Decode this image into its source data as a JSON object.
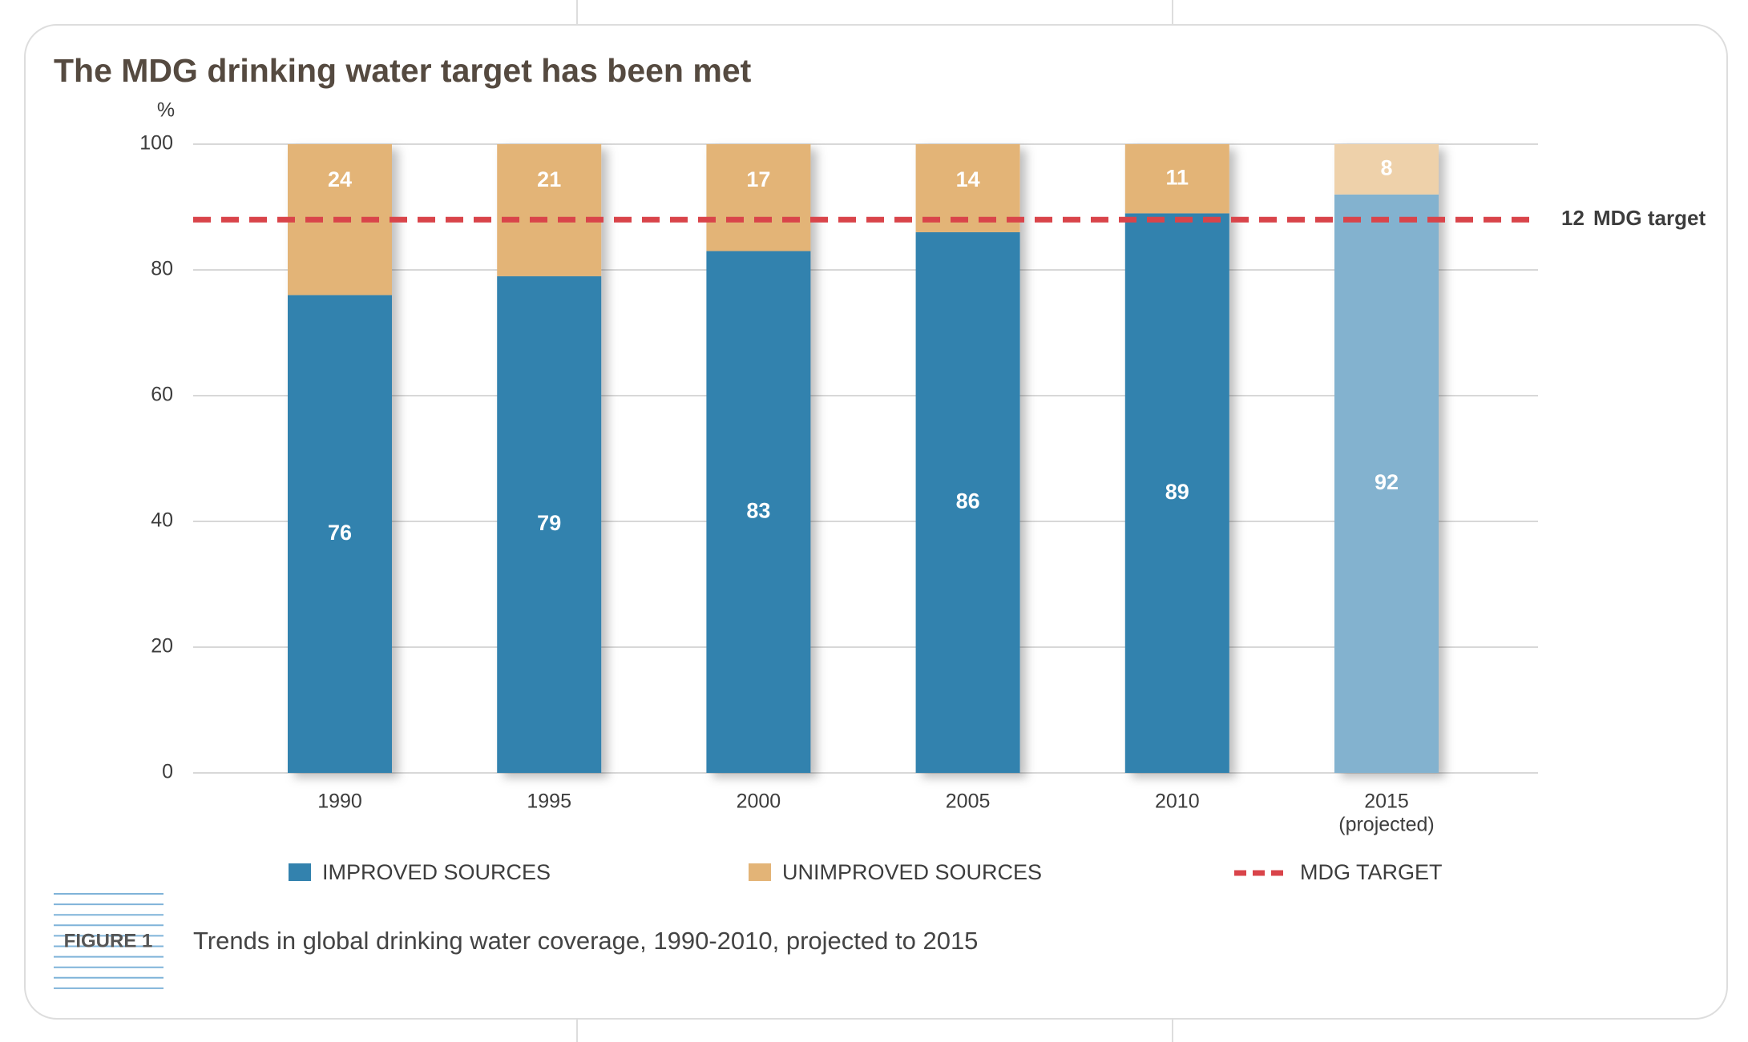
{
  "chart_data": {
    "type": "stacked_bar",
    "title": "The MDG drinking water target has been met",
    "y_label": "%",
    "categories": [
      "1990",
      "1995",
      "2000",
      "2005",
      "2010",
      "2015"
    ],
    "category_note": "(projected)",
    "series": [
      {
        "name": "IMPROVED SOURCES",
        "color": "#3382ae",
        "colors": [
          "#3382ae",
          "#3382ae",
          "#3382ae",
          "#3382ae",
          "#3382ae",
          "#83b2cf"
        ],
        "values": [
          76,
          79,
          83,
          86,
          89,
          92
        ]
      },
      {
        "name": "UNIMPROVED SOURCES",
        "color": "#e3b477",
        "colors": [
          "#e3b477",
          "#e3b477",
          "#e3b477",
          "#e3b477",
          "#e3b477",
          "#eed1aa"
        ],
        "values": [
          24,
          21,
          17,
          14,
          11,
          8
        ]
      }
    ],
    "target": {
      "value": 88,
      "unimproved": 12,
      "label": "MDG target",
      "legend": "MDG TARGET",
      "color": "#d9444a"
    },
    "ylim": [
      0,
      100
    ],
    "yticks": [
      0,
      20,
      40,
      60,
      80,
      100
    ],
    "grid": true,
    "figure_label": "FIGURE 1",
    "caption": "Trends in global drinking water coverage, 1990-2010, projected to 2015"
  }
}
